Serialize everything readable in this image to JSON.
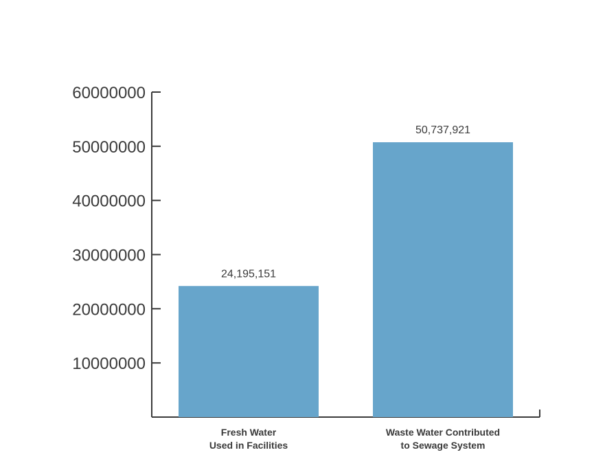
{
  "chart_data": {
    "type": "bar",
    "categories": [
      [
        "Fresh Water",
        "Used in Facilities"
      ],
      [
        "Waste Water Contributed",
        "to Sewage System"
      ]
    ],
    "values": [
      24195151,
      50737921
    ],
    "value_labels": [
      "24,195,151",
      "50,737,921"
    ],
    "yticks": [
      10000000,
      20000000,
      30000000,
      40000000,
      50000000,
      60000000
    ],
    "ytick_labels": [
      "10000000",
      "20000000",
      "30000000",
      "40000000",
      "50000000",
      "60000000"
    ],
    "ylim": [
      0,
      60000000
    ],
    "title": "",
    "xlabel": "",
    "ylabel": "",
    "grid": false,
    "colors": {
      "bar": "#67a5cb",
      "axis": "#3a3a3a",
      "text": "#3a3a3a"
    }
  }
}
